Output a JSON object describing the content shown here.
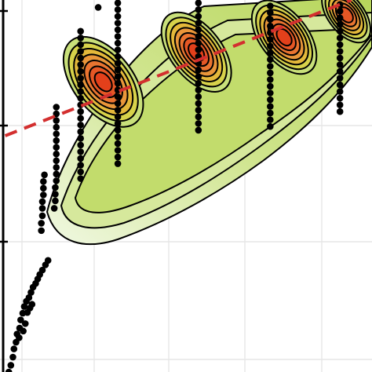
{
  "chart_data": {
    "type": "scatter",
    "title": "",
    "xlabel": "",
    "ylabel": "",
    "grid": true,
    "legend": "none",
    "overlays": [
      "2d-density-filled-contours",
      "linear-trend-dashed"
    ],
    "colors": {
      "points": "#000000",
      "contour_lines": "#000000",
      "density_low": "#eef7dc",
      "density_mid": "#a9cc3a",
      "density_high": "#e3401b",
      "trend": "#d32f2f",
      "grid": "#e6e6e6",
      "axis": "#000000"
    },
    "trend_line": [
      {
        "x": 0.29,
        "y": 0.635
      },
      {
        "x": 0.96,
        "y": 1.0
      }
    ],
    "density_peaks": [
      {
        "x": 0.48,
        "y": 0.78,
        "level": 7
      },
      {
        "x": 0.66,
        "y": 0.86,
        "level": 7
      },
      {
        "x": 0.83,
        "y": 0.9,
        "level": 7
      },
      {
        "x": 0.95,
        "y": 0.96,
        "level": 6
      }
    ],
    "columns": [
      {
        "x": 0.56,
        "ymin": 0.68,
        "ymax": 0.9
      },
      {
        "x": 0.68,
        "ymin": 0.7,
        "ymax": 0.97
      },
      {
        "x": 0.8,
        "ymin": 0.74,
        "ymax": 1.0
      },
      {
        "x": 0.88,
        "ymin": 0.78,
        "ymax": 1.0
      }
    ],
    "series": [
      {
        "values": [
          {
            "x": 0.297,
            "y": 0.0
          },
          {
            "x": 0.301,
            "y": 0.018
          },
          {
            "x": 0.305,
            "y": 0.04
          },
          {
            "x": 0.307,
            "y": 0.062
          },
          {
            "x": 0.311,
            "y": 0.08
          },
          {
            "x": 0.313,
            "y": 0.102
          },
          {
            "x": 0.318,
            "y": 0.118
          },
          {
            "x": 0.32,
            "y": 0.14
          },
          {
            "x": 0.324,
            "y": 0.158
          },
          {
            "x": 0.327,
            "y": 0.176
          },
          {
            "x": 0.331,
            "y": 0.19
          },
          {
            "x": 0.336,
            "y": 0.2
          },
          {
            "x": 0.34,
            "y": 0.214
          },
          {
            "x": 0.344,
            "y": 0.228
          },
          {
            "x": 0.349,
            "y": 0.238
          },
          {
            "x": 0.353,
            "y": 0.25
          },
          {
            "x": 0.357,
            "y": 0.262
          },
          {
            "x": 0.362,
            "y": 0.274
          },
          {
            "x": 0.368,
            "y": 0.288
          },
          {
            "x": 0.373,
            "y": 0.3
          },
          {
            "x": 0.333,
            "y": 0.16
          },
          {
            "x": 0.338,
            "y": 0.172
          },
          {
            "x": 0.329,
            "y": 0.13
          },
          {
            "x": 0.342,
            "y": 0.182
          },
          {
            "x": 0.325,
            "y": 0.11
          },
          {
            "x": 0.317,
            "y": 0.092
          },
          {
            "x": 0.36,
            "y": 0.38
          },
          {
            "x": 0.36,
            "y": 0.4
          },
          {
            "x": 0.362,
            "y": 0.42
          },
          {
            "x": 0.362,
            "y": 0.44
          },
          {
            "x": 0.362,
            "y": 0.458
          },
          {
            "x": 0.364,
            "y": 0.476
          },
          {
            "x": 0.364,
            "y": 0.494
          },
          {
            "x": 0.364,
            "y": 0.512
          },
          {
            "x": 0.366,
            "y": 0.53
          },
          {
            "x": 0.387,
            "y": 0.46
          },
          {
            "x": 0.387,
            "y": 0.478
          },
          {
            "x": 0.387,
            "y": 0.496
          },
          {
            "x": 0.389,
            "y": 0.514
          },
          {
            "x": 0.389,
            "y": 0.532
          },
          {
            "x": 0.389,
            "y": 0.55
          },
          {
            "x": 0.389,
            "y": 0.568
          },
          {
            "x": 0.389,
            "y": 0.586
          },
          {
            "x": 0.389,
            "y": 0.604
          },
          {
            "x": 0.389,
            "y": 0.622
          },
          {
            "x": 0.389,
            "y": 0.64
          },
          {
            "x": 0.389,
            "y": 0.658
          },
          {
            "x": 0.389,
            "y": 0.676
          },
          {
            "x": 0.389,
            "y": 0.694
          },
          {
            "x": 0.389,
            "y": 0.712
          },
          {
            "x": 0.385,
            "y": 0.44
          },
          {
            "x": 0.436,
            "y": 0.52
          },
          {
            "x": 0.436,
            "y": 0.538
          },
          {
            "x": 0.436,
            "y": 0.556
          },
          {
            "x": 0.436,
            "y": 0.574
          },
          {
            "x": 0.436,
            "y": 0.592
          },
          {
            "x": 0.436,
            "y": 0.61
          },
          {
            "x": 0.436,
            "y": 0.628
          },
          {
            "x": 0.436,
            "y": 0.646
          },
          {
            "x": 0.436,
            "y": 0.664
          },
          {
            "x": 0.436,
            "y": 0.682
          },
          {
            "x": 0.436,
            "y": 0.7
          },
          {
            "x": 0.436,
            "y": 0.718
          },
          {
            "x": 0.436,
            "y": 0.736
          },
          {
            "x": 0.436,
            "y": 0.754
          },
          {
            "x": 0.436,
            "y": 0.772
          },
          {
            "x": 0.436,
            "y": 0.79
          },
          {
            "x": 0.436,
            "y": 0.808
          },
          {
            "x": 0.436,
            "y": 0.826
          },
          {
            "x": 0.436,
            "y": 0.844
          },
          {
            "x": 0.436,
            "y": 0.862
          },
          {
            "x": 0.436,
            "y": 0.88
          },
          {
            "x": 0.436,
            "y": 0.898
          },
          {
            "x": 0.436,
            "y": 0.916
          },
          {
            "x": 0.47,
            "y": 0.98
          },
          {
            "x": 0.508,
            "y": 0.56
          },
          {
            "x": 0.508,
            "y": 0.578
          },
          {
            "x": 0.508,
            "y": 0.596
          },
          {
            "x": 0.508,
            "y": 0.614
          },
          {
            "x": 0.508,
            "y": 0.632
          },
          {
            "x": 0.508,
            "y": 0.65
          },
          {
            "x": 0.508,
            "y": 0.668
          },
          {
            "x": 0.508,
            "y": 0.686
          },
          {
            "x": 0.508,
            "y": 0.704
          },
          {
            "x": 0.508,
            "y": 0.722
          },
          {
            "x": 0.508,
            "y": 0.74
          },
          {
            "x": 0.508,
            "y": 0.758
          },
          {
            "x": 0.508,
            "y": 0.776
          },
          {
            "x": 0.508,
            "y": 0.794
          },
          {
            "x": 0.508,
            "y": 0.812
          },
          {
            "x": 0.508,
            "y": 0.83
          },
          {
            "x": 0.508,
            "y": 0.848
          },
          {
            "x": 0.508,
            "y": 0.866
          },
          {
            "x": 0.508,
            "y": 0.884
          },
          {
            "x": 0.508,
            "y": 0.902
          },
          {
            "x": 0.508,
            "y": 0.92
          },
          {
            "x": 0.508,
            "y": 0.938
          },
          {
            "x": 0.508,
            "y": 0.956
          },
          {
            "x": 0.508,
            "y": 0.974
          },
          {
            "x": 0.508,
            "y": 0.992
          },
          {
            "x": 0.664,
            "y": 0.65
          },
          {
            "x": 0.664,
            "y": 0.668
          },
          {
            "x": 0.664,
            "y": 0.686
          },
          {
            "x": 0.664,
            "y": 0.704
          },
          {
            "x": 0.664,
            "y": 0.722
          },
          {
            "x": 0.664,
            "y": 0.74
          },
          {
            "x": 0.664,
            "y": 0.758
          },
          {
            "x": 0.664,
            "y": 0.776
          },
          {
            "x": 0.664,
            "y": 0.794
          },
          {
            "x": 0.664,
            "y": 0.812
          },
          {
            "x": 0.664,
            "y": 0.83
          },
          {
            "x": 0.664,
            "y": 0.848
          },
          {
            "x": 0.664,
            "y": 0.866
          },
          {
            "x": 0.664,
            "y": 0.884
          },
          {
            "x": 0.664,
            "y": 0.902
          },
          {
            "x": 0.664,
            "y": 0.92
          },
          {
            "x": 0.664,
            "y": 0.938
          },
          {
            "x": 0.664,
            "y": 0.956
          },
          {
            "x": 0.664,
            "y": 0.974
          },
          {
            "x": 0.664,
            "y": 0.992
          },
          {
            "x": 0.803,
            "y": 0.66
          },
          {
            "x": 0.803,
            "y": 0.678
          },
          {
            "x": 0.803,
            "y": 0.696
          },
          {
            "x": 0.803,
            "y": 0.714
          },
          {
            "x": 0.803,
            "y": 0.732
          },
          {
            "x": 0.803,
            "y": 0.75
          },
          {
            "x": 0.803,
            "y": 0.768
          },
          {
            "x": 0.803,
            "y": 0.786
          },
          {
            "x": 0.803,
            "y": 0.804
          },
          {
            "x": 0.803,
            "y": 0.822
          },
          {
            "x": 0.803,
            "y": 0.84
          },
          {
            "x": 0.803,
            "y": 0.858
          },
          {
            "x": 0.803,
            "y": 0.876
          },
          {
            "x": 0.803,
            "y": 0.894
          },
          {
            "x": 0.803,
            "y": 0.912
          },
          {
            "x": 0.803,
            "y": 0.93
          },
          {
            "x": 0.803,
            "y": 0.948
          },
          {
            "x": 0.803,
            "y": 0.966
          },
          {
            "x": 0.803,
            "y": 0.984
          },
          {
            "x": 0.938,
            "y": 0.7
          },
          {
            "x": 0.938,
            "y": 0.718
          },
          {
            "x": 0.938,
            "y": 0.736
          },
          {
            "x": 0.938,
            "y": 0.754
          },
          {
            "x": 0.938,
            "y": 0.772
          },
          {
            "x": 0.938,
            "y": 0.79
          },
          {
            "x": 0.938,
            "y": 0.808
          },
          {
            "x": 0.938,
            "y": 0.826
          },
          {
            "x": 0.938,
            "y": 0.844
          },
          {
            "x": 0.938,
            "y": 0.862
          },
          {
            "x": 0.938,
            "y": 0.88
          },
          {
            "x": 0.938,
            "y": 0.898
          },
          {
            "x": 0.938,
            "y": 0.916
          },
          {
            "x": 0.938,
            "y": 0.934
          },
          {
            "x": 0.938,
            "y": 0.952
          },
          {
            "x": 0.938,
            "y": 0.97
          },
          {
            "x": 0.938,
            "y": 0.988
          }
        ]
      }
    ],
    "xlim": [
      0.28,
      1.0
    ],
    "ylim": [
      0.0,
      1.0
    ]
  }
}
